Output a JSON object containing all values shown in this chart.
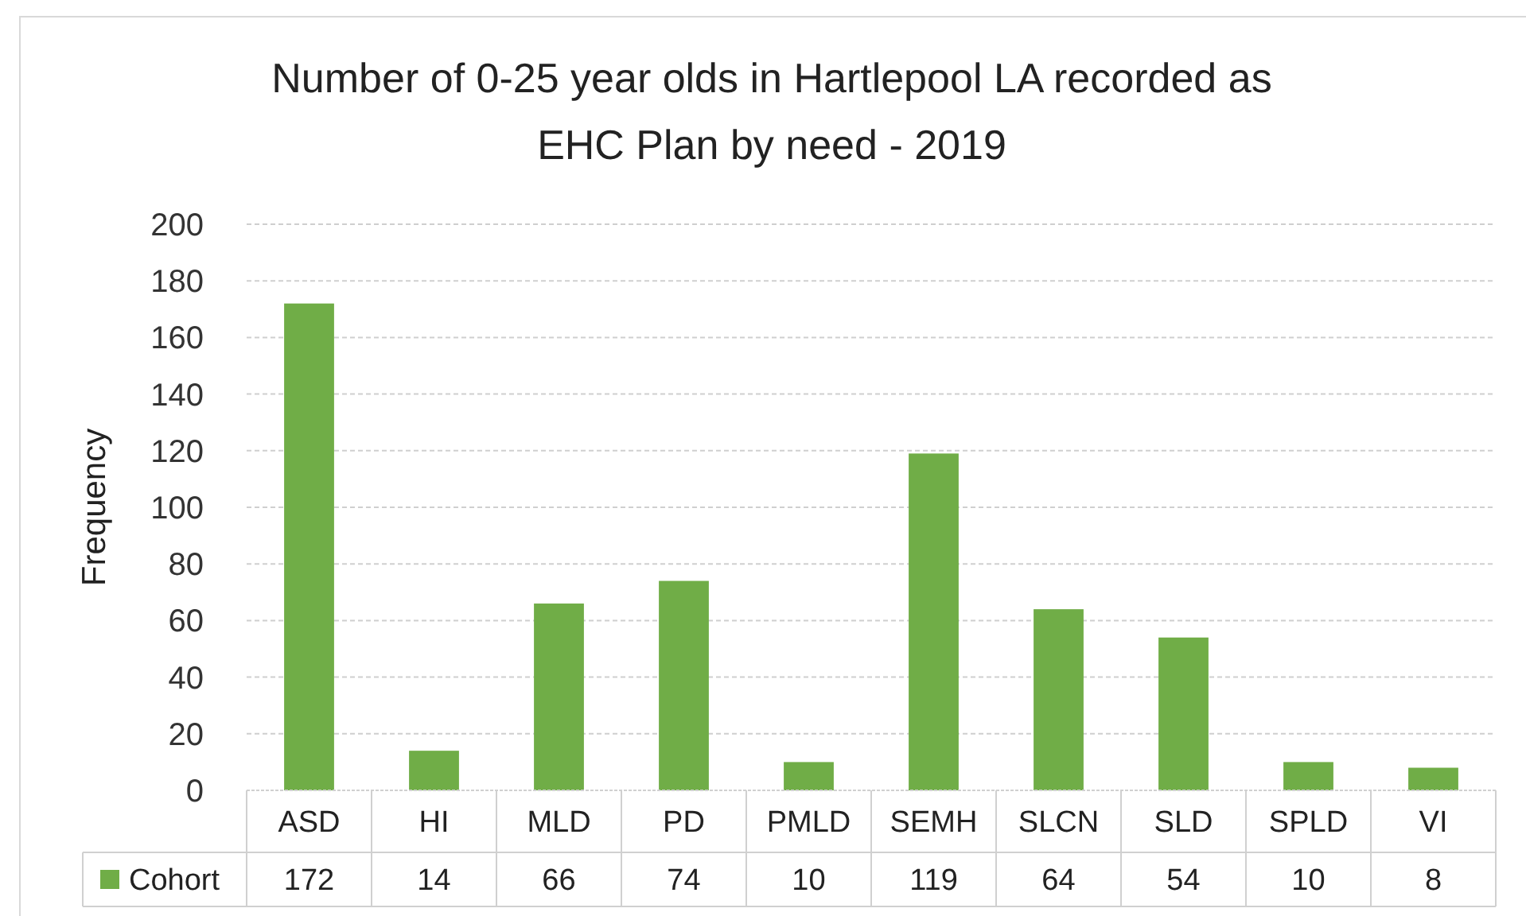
{
  "chart_data": {
    "type": "bar",
    "title": "Number of 0-25 year olds in Hartlepool LA recorded as EHC Plan by need - 2019",
    "ylabel": "Frequency",
    "categories": [
      "ASD",
      "HI",
      "MLD",
      "PD",
      "PMLD",
      "SEMH",
      "SLCN",
      "SLD",
      "SPLD",
      "VI"
    ],
    "series": [
      {
        "name": "Cohort",
        "color": "#70ad47",
        "values": [
          172,
          14,
          66,
          74,
          10,
          119,
          64,
          54,
          10,
          8
        ]
      }
    ],
    "ylim": [
      0,
      200
    ],
    "yticks": [
      0,
      20,
      40,
      60,
      80,
      100,
      120,
      140,
      160,
      180,
      200
    ],
    "grid": "y",
    "legend": "bottom",
    "data_labels": true
  }
}
